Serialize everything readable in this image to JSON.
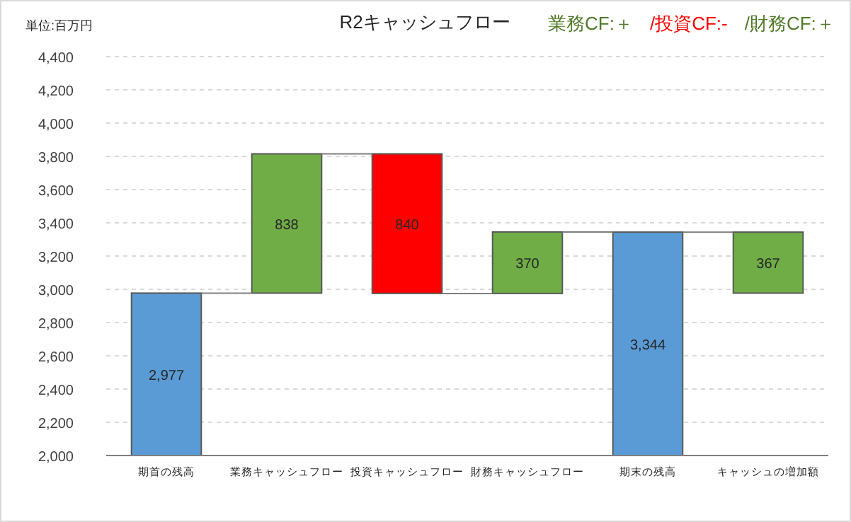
{
  "chart_data": {
    "type": "bar",
    "title": "R2キャッシュフロー",
    "annotations": [
      "単位:百万円",
      "業務CF:＋",
      "/投資CF:-",
      "/財務CF:＋"
    ],
    "categories": [
      "期首の残高",
      "業務キャッシュフロー",
      "投資キャッシュフロー",
      "財務キャッシュフロー",
      "期末の残高",
      "キャッシュの増加額"
    ],
    "values": [
      2977,
      838,
      -840,
      370,
      3344,
      367
    ],
    "base": [
      0,
      2977,
      3815,
      2975,
      0,
      2977
    ],
    "value_labels": [
      "2,977",
      "838",
      "840",
      "370",
      "3,344",
      "367"
    ],
    "colors": [
      "#5b9bd5",
      "#70ad47",
      "#ff0000",
      "#70ad47",
      "#5b9bd5",
      "#70ad47"
    ],
    "ylim": [
      2000,
      4400
    ],
    "yticks": [
      {
        "value": 2000,
        "label": "2,000"
      },
      {
        "value": 2200,
        "label": "2,200"
      },
      {
        "value": 2400,
        "label": "2,400"
      },
      {
        "value": 2600,
        "label": "2,600"
      },
      {
        "value": 2800,
        "label": "2,800"
      },
      {
        "value": 3000,
        "label": "3,000"
      },
      {
        "value": 3200,
        "label": "3,200"
      },
      {
        "value": 3400,
        "label": "3,400"
      },
      {
        "value": 3600,
        "label": "3,600"
      },
      {
        "value": 3800,
        "label": "3,800"
      },
      {
        "value": 4000,
        "label": "4,000"
      },
      {
        "value": 4200,
        "label": "4,200"
      },
      {
        "value": 4400,
        "label": "4,400"
      }
    ],
    "grid": "y"
  }
}
